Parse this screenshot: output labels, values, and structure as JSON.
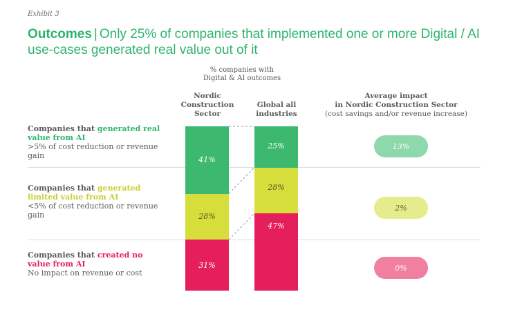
{
  "exhibit": "Exhibit 3",
  "title": {
    "bold": "Outcomes",
    "separator": "|",
    "rest": "Only 25% of companies that implemented one or more Digital / AI use-cases generated real value out of it"
  },
  "chart_header": {
    "line1": "% companies with",
    "line2": "Digital & AI outcomes"
  },
  "columns": {
    "nordic": {
      "line1": "Nordic",
      "line2": "Construction",
      "line3": "Sector"
    },
    "global": {
      "line1": "Global all",
      "line2": "industries"
    },
    "impact": {
      "line1": "Average impact",
      "line2": "in Nordic Construction Sector",
      "line3": "(cost savings and/or revenue increase)"
    }
  },
  "rows": [
    {
      "lead": "Companies that ",
      "highlight": "generated real value from AI",
      "desc": ">5% of cost reduction or revenue gain"
    },
    {
      "lead": "Companies that ",
      "highlight": "generated limited value from AI",
      "desc": "<5% of cost reduction or revenue gain"
    },
    {
      "lead": "Companies that ",
      "highlight": "created no value from AI",
      "desc": "No impact on revenue or cost"
    }
  ],
  "colors": {
    "green": "#3cb96e",
    "yellow": "#d6de3c",
    "red": "#e41f5b",
    "pill_green": "#8dd9ab",
    "pill_yellow": "#e6ec8c",
    "pill_red": "#f07fa0"
  },
  "chart_data": {
    "type": "bar",
    "stacked": true,
    "categories": [
      "Nordic Construction Sector",
      "Global all industries"
    ],
    "series": [
      {
        "name": "Generated real value from AI",
        "values": [
          41,
          25
        ],
        "labels": [
          "41%",
          "25%"
        ]
      },
      {
        "name": "Generated limited value from AI",
        "values": [
          28,
          28
        ],
        "labels": [
          "28%",
          "28%"
        ]
      },
      {
        "name": "Created no value from AI",
        "values": [
          31,
          47
        ],
        "labels": [
          "31%",
          "47%"
        ]
      }
    ],
    "average_impact": {
      "values": [
        "13%",
        "2%",
        "0%"
      ]
    },
    "title": "% companies with Digital & AI outcomes"
  }
}
